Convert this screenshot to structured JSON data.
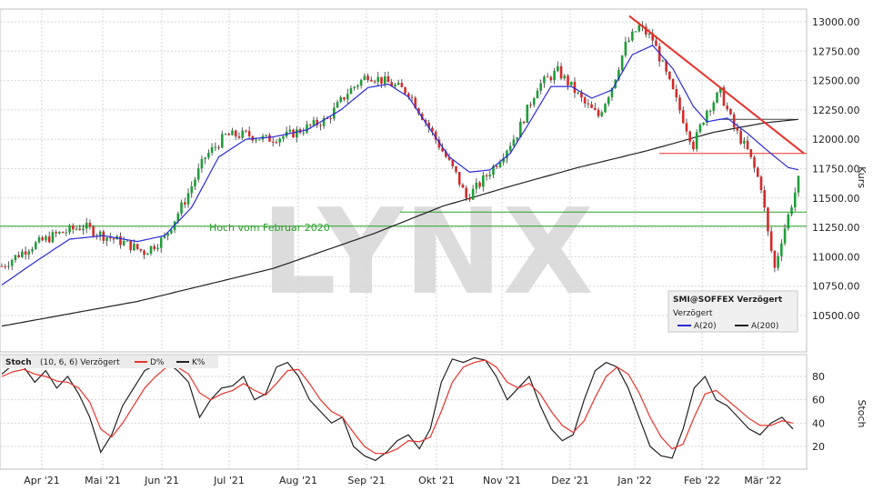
{
  "chart_data": [
    {
      "type": "candlestick",
      "instrument_label": "SMI@SOFFEX Verzögert",
      "sub_label": "Verzögert",
      "ylabel": "Kurs",
      "watermark": "LYNX",
      "ylim": [
        10300,
        13100
      ],
      "y_ticks": [
        10500,
        10750,
        11000,
        11250,
        11500,
        11750,
        12000,
        12250,
        12500,
        12750,
        13000
      ],
      "y_tick_labels": [
        "10500.00",
        "10750.00",
        "11000.00",
        "11250.00",
        "11500.00",
        "11750.00",
        "12000.00",
        "12250.00",
        "12500.00",
        "12750.00",
        "13000.00"
      ],
      "x_tick_labels": [
        "Apr '21",
        "Mai '21",
        "Jun '21",
        "Jul '21",
        "Aug '21",
        "Sep '21",
        "Okt '21",
        "Nov '21",
        "Dez '21",
        "Jan '22",
        "Feb '22",
        "Mär '22"
      ],
      "legend": {
        "items": [
          {
            "label": "A(20)",
            "color": "#2b2bd6"
          },
          {
            "label": "A(200)",
            "color": "#222222"
          }
        ]
      },
      "annotations": [
        {
          "text": "Hoch vom Februar 2020",
          "value": 11260,
          "color": "#2aa02a"
        }
      ],
      "horizontal_lines": [
        {
          "value": 11260,
          "color": "#2aa02a"
        },
        {
          "value": 11380,
          "color": "#2aa02a"
        },
        {
          "value": 11880,
          "color": "#e8322a"
        },
        {
          "value": 12170,
          "color": "#444444"
        }
      ],
      "trendline": {
        "from": {
          "x": "Jan '22",
          "y": 13050
        },
        "to": {
          "x": "Mär '22",
          "y": 11880
        },
        "color": "#e8322a"
      },
      "price_path": [
        [
          0,
          10920
        ],
        [
          8,
          11080
        ],
        [
          16,
          11190
        ],
        [
          24,
          11260
        ],
        [
          30,
          11180
        ],
        [
          36,
          11120
        ],
        [
          42,
          11040
        ],
        [
          48,
          11160
        ],
        [
          54,
          11480
        ],
        [
          60,
          11850
        ],
        [
          66,
          12030
        ],
        [
          72,
          12040
        ],
        [
          78,
          12000
        ],
        [
          84,
          12030
        ],
        [
          90,
          12100
        ],
        [
          96,
          12170
        ],
        [
          102,
          12400
        ],
        [
          108,
          12550
        ],
        [
          114,
          12480
        ],
        [
          120,
          12400
        ],
        [
          126,
          12100
        ],
        [
          130,
          11900
        ],
        [
          134,
          11700
        ],
        [
          137,
          11500
        ],
        [
          141,
          11620
        ],
        [
          146,
          11800
        ],
        [
          152,
          12050
        ],
        [
          158,
          12450
        ],
        [
          164,
          12580
        ],
        [
          168,
          12450
        ],
        [
          172,
          12300
        ],
        [
          176,
          12200
        ],
        [
          180,
          12450
        ],
        [
          184,
          12800
        ],
        [
          188,
          12960
        ],
        [
          192,
          12850
        ],
        [
          196,
          12550
        ],
        [
          200,
          12250
        ],
        [
          204,
          11950
        ],
        [
          208,
          12250
        ],
        [
          212,
          12400
        ],
        [
          216,
          12100
        ],
        [
          220,
          11900
        ],
        [
          224,
          11600
        ],
        [
          226,
          11200
        ],
        [
          228,
          10900
        ],
        [
          230,
          11150
        ],
        [
          233,
          11450
        ],
        [
          235,
          11650
        ]
      ],
      "ma20_path": [
        [
          0,
          10760
        ],
        [
          10,
          10960
        ],
        [
          20,
          11150
        ],
        [
          30,
          11180
        ],
        [
          40,
          11130
        ],
        [
          48,
          11180
        ],
        [
          56,
          11420
        ],
        [
          64,
          11850
        ],
        [
          72,
          12000
        ],
        [
          80,
          12020
        ],
        [
          90,
          12080
        ],
        [
          100,
          12250
        ],
        [
          108,
          12440
        ],
        [
          114,
          12470
        ],
        [
          120,
          12360
        ],
        [
          126,
          12100
        ],
        [
          132,
          11850
        ],
        [
          138,
          11720
        ],
        [
          144,
          11740
        ],
        [
          150,
          11880
        ],
        [
          156,
          12160
        ],
        [
          162,
          12450
        ],
        [
          168,
          12450
        ],
        [
          174,
          12350
        ],
        [
          180,
          12420
        ],
        [
          186,
          12720
        ],
        [
          192,
          12800
        ],
        [
          198,
          12600
        ],
        [
          204,
          12280
        ],
        [
          208,
          12150
        ],
        [
          214,
          12180
        ],
        [
          220,
          12050
        ],
        [
          226,
          11900
        ],
        [
          232,
          11760
        ],
        [
          235,
          11740
        ]
      ],
      "ma200_path": [
        [
          0,
          10410
        ],
        [
          40,
          10620
        ],
        [
          80,
          10900
        ],
        [
          110,
          11200
        ],
        [
          130,
          11430
        ],
        [
          150,
          11600
        ],
        [
          170,
          11760
        ],
        [
          190,
          11900
        ],
        [
          210,
          12060
        ],
        [
          225,
          12140
        ],
        [
          235,
          12170
        ]
      ]
    },
    {
      "type": "line",
      "title": "Stoch",
      "params": "(10, 6, 6) Verzögert",
      "ylabel": "Stoch",
      "ylim": [
        0,
        100
      ],
      "y_ticks": [
        20,
        40,
        60,
        80
      ],
      "y_tick_labels": [
        "20",
        "40",
        "60",
        "80"
      ],
      "legend": [
        {
          "label": "D%",
          "color": "#e8322a"
        },
        {
          "label": "K%",
          "color": "#222222"
        }
      ],
      "series": [
        {
          "name": "K%",
          "color": "#222222",
          "values": [
            82,
            90,
            88,
            75,
            85,
            70,
            80,
            65,
            45,
            15,
            30,
            55,
            70,
            85,
            90,
            92,
            85,
            75,
            45,
            60,
            70,
            72,
            80,
            60,
            65,
            88,
            92,
            80,
            60,
            50,
            40,
            45,
            20,
            12,
            8,
            15,
            25,
            30,
            18,
            35,
            75,
            95,
            92,
            96,
            94,
            80,
            60,
            70,
            80,
            55,
            35,
            25,
            30,
            60,
            85,
            92,
            88,
            70,
            45,
            20,
            12,
            10,
            35,
            70,
            80,
            60,
            55,
            45,
            35,
            30,
            40,
            45,
            35
          ]
        },
        {
          "name": "D%",
          "color": "#e8322a",
          "values": [
            80,
            84,
            86,
            82,
            80,
            76,
            75,
            70,
            58,
            35,
            28,
            40,
            55,
            70,
            80,
            88,
            88,
            82,
            66,
            60,
            65,
            68,
            74,
            68,
            64,
            74,
            85,
            86,
            74,
            60,
            50,
            45,
            32,
            20,
            14,
            14,
            18,
            25,
            24,
            28,
            50,
            75,
            88,
            92,
            94,
            88,
            75,
            70,
            74,
            65,
            50,
            38,
            32,
            42,
            62,
            80,
            88,
            82,
            66,
            45,
            28,
            18,
            22,
            45,
            65,
            68,
            60,
            52,
            44,
            38,
            38,
            42,
            40
          ]
        }
      ]
    }
  ]
}
